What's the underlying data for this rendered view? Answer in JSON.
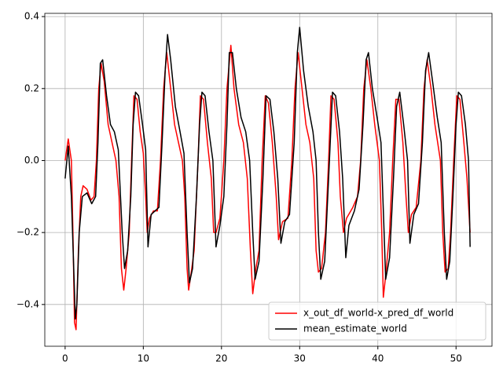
{
  "chart_data": {
    "type": "line",
    "xlim": [
      -2.6,
      54.6
    ],
    "xticks": [
      0,
      10,
      20,
      30,
      40,
      50
    ],
    "ylim": [
      -0.516,
      0.409
    ],
    "yticks": [
      {
        "value": -0.4,
        "label": "−0.4"
      },
      {
        "value": -0.2,
        "label": "−0.2"
      },
      {
        "value": 0,
        "label": "0.0"
      },
      0.2,
      0.4
    ],
    "grid": true,
    "legend": "lower right",
    "series": [
      {
        "name": "x_out_df_world-x_pred_df_world",
        "color": "#ff0000",
        "x": [
          0,
          0.4,
          0.8,
          1.0,
          1.2,
          1.4,
          1.7,
          2.0,
          2.3,
          2.8,
          3.3,
          3.7,
          4.0,
          4.3,
          4.6,
          5.0,
          5.5,
          6.0,
          6.5,
          6.9,
          7.2,
          7.5,
          7.8,
          8.2,
          8.5,
          8.8,
          9.2,
          9.6,
          10.0,
          10.3,
          10.5,
          10.8,
          11.3,
          11.8,
          12.2,
          12.6,
          13.0,
          13.5,
          14.0,
          14.5,
          15.0,
          15.3,
          15.6,
          15.8,
          16.2,
          16.5,
          17.0,
          17.3,
          17.7,
          18.2,
          18.7,
          19.0,
          19.3,
          19.8,
          20.3,
          20.7,
          21.2,
          21.6,
          22.2,
          22.8,
          23.3,
          23.7,
          24.0,
          24.4,
          24.8,
          25.2,
          25.6,
          26.0,
          26.5,
          27.0,
          27.3,
          27.8,
          28.5,
          29.0,
          29.4,
          29.8,
          30.3,
          30.8,
          31.3,
          31.8,
          32.1,
          32.4,
          32.8,
          33.3,
          33.7,
          34.0,
          34.4,
          34.9,
          35.2,
          35.6,
          36.0,
          36.8,
          37.4,
          37.8,
          38.2,
          38.6,
          39.1,
          39.6,
          40.2,
          40.5,
          40.7,
          41.0,
          41.5,
          41.9,
          42.3,
          42.7,
          43.2,
          43.6,
          43.9,
          44.3,
          44.9,
          45.5,
          45.9,
          46.3,
          46.8,
          47.3,
          48.0,
          48.3,
          48.6,
          49.0,
          49.3,
          49.7,
          50.1,
          50.5,
          51.0,
          51.4,
          51.8
        ],
        "values": [
          0.0,
          0.06,
          0.0,
          -0.2,
          -0.45,
          -0.47,
          -0.25,
          -0.1,
          -0.07,
          -0.08,
          -0.11,
          -0.1,
          0.0,
          0.2,
          0.27,
          0.22,
          0.1,
          0.05,
          0.0,
          -0.1,
          -0.3,
          -0.36,
          -0.3,
          -0.2,
          0.0,
          0.18,
          0.17,
          0.08,
          0.02,
          -0.1,
          -0.2,
          -0.16,
          -0.14,
          -0.14,
          0.0,
          0.2,
          0.3,
          0.2,
          0.1,
          0.05,
          0.0,
          -0.1,
          -0.3,
          -0.36,
          -0.3,
          -0.25,
          0.0,
          0.18,
          0.17,
          0.05,
          -0.05,
          -0.2,
          -0.2,
          -0.16,
          0.0,
          0.2,
          0.32,
          0.2,
          0.1,
          0.05,
          -0.05,
          -0.25,
          -0.37,
          -0.3,
          -0.25,
          0.0,
          0.18,
          0.16,
          0.05,
          -0.1,
          -0.22,
          -0.17,
          -0.16,
          0.0,
          0.2,
          0.3,
          0.2,
          0.1,
          0.05,
          -0.05,
          -0.25,
          -0.31,
          -0.3,
          -0.2,
          0.0,
          0.18,
          0.17,
          0.05,
          -0.1,
          -0.2,
          -0.16,
          -0.13,
          -0.1,
          0.0,
          0.2,
          0.28,
          0.2,
          0.1,
          0.0,
          -0.2,
          -0.38,
          -0.32,
          -0.2,
          0.0,
          0.17,
          0.17,
          0.05,
          -0.1,
          -0.2,
          -0.15,
          -0.13,
          0.0,
          0.2,
          0.28,
          0.2,
          0.1,
          0.0,
          -0.2,
          -0.31,
          -0.3,
          -0.2,
          0.0,
          0.18,
          0.17,
          0.05,
          -0.05,
          -0.2
        ]
      },
      {
        "name": "mean_estimate_world",
        "color": "#000000",
        "x": [
          0,
          0.4,
          0.8,
          1.1,
          1.3,
          1.5,
          1.8,
          2.2,
          2.8,
          3.4,
          3.9,
          4.2,
          4.5,
          4.8,
          5.3,
          5.8,
          6.3,
          6.8,
          7.3,
          7.6,
          8.0,
          8.4,
          8.7,
          9.0,
          9.4,
          9.9,
          10.3,
          10.6,
          11.0,
          11.5,
          12.0,
          12.4,
          12.8,
          13.1,
          13.5,
          14.1,
          14.7,
          15.2,
          15.6,
          15.9,
          16.3,
          16.8,
          17.2,
          17.5,
          17.9,
          18.4,
          18.9,
          19.3,
          19.8,
          20.3,
          20.7,
          21.0,
          21.4,
          21.9,
          22.5,
          23.1,
          23.6,
          24.0,
          24.3,
          24.8,
          25.3,
          25.7,
          26.2,
          26.7,
          27.2,
          27.6,
          28.1,
          28.7,
          29.3,
          29.7,
          30.0,
          30.5,
          31.1,
          31.7,
          32.1,
          32.4,
          32.7,
          33.2,
          33.7,
          34.2,
          34.6,
          35.1,
          35.5,
          35.9,
          36.3,
          37.0,
          37.6,
          38.1,
          38.5,
          38.8,
          39.3,
          39.9,
          40.4,
          40.8,
          41.0,
          41.5,
          42.0,
          42.4,
          42.8,
          43.3,
          43.8,
          44.1,
          44.6,
          45.2,
          45.7,
          46.1,
          46.5,
          47.0,
          47.6,
          48.1,
          48.5,
          48.8,
          49.2,
          49.6,
          50.0,
          50.3,
          50.7,
          51.2,
          51.6,
          51.8
        ],
        "values": [
          -0.05,
          0.04,
          -0.1,
          -0.3,
          -0.44,
          -0.4,
          -0.2,
          -0.1,
          -0.09,
          -0.12,
          -0.1,
          0.05,
          0.27,
          0.28,
          0.18,
          0.1,
          0.08,
          0.03,
          -0.2,
          -0.3,
          -0.25,
          -0.1,
          0.1,
          0.19,
          0.18,
          0.1,
          0.03,
          -0.24,
          -0.15,
          -0.14,
          -0.13,
          0.05,
          0.25,
          0.35,
          0.28,
          0.15,
          0.08,
          0.02,
          -0.2,
          -0.34,
          -0.3,
          -0.1,
          0.1,
          0.19,
          0.18,
          0.08,
          0.0,
          -0.24,
          -0.18,
          -0.1,
          0.1,
          0.3,
          0.3,
          0.2,
          0.12,
          0.08,
          0.0,
          -0.2,
          -0.33,
          -0.28,
          -0.05,
          0.18,
          0.17,
          0.08,
          -0.05,
          -0.23,
          -0.17,
          -0.15,
          0.05,
          0.3,
          0.37,
          0.25,
          0.15,
          0.08,
          0.0,
          -0.2,
          -0.33,
          -0.28,
          -0.05,
          0.19,
          0.18,
          0.08,
          -0.05,
          -0.27,
          -0.18,
          -0.14,
          -0.08,
          0.1,
          0.28,
          0.3,
          0.2,
          0.12,
          0.05,
          -0.2,
          -0.33,
          -0.27,
          -0.05,
          0.15,
          0.19,
          0.1,
          0.0,
          -0.23,
          -0.15,
          -0.12,
          0.05,
          0.25,
          0.3,
          0.22,
          0.12,
          0.05,
          -0.2,
          -0.33,
          -0.28,
          -0.1,
          0.1,
          0.19,
          0.18,
          0.1,
          0.0,
          -0.24
        ]
      }
    ]
  }
}
